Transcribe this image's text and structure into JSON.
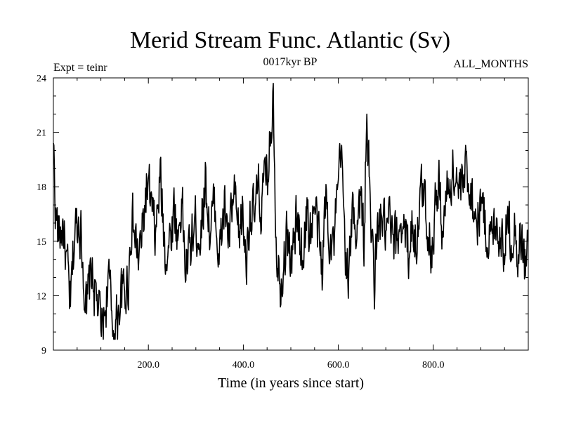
{
  "chart_data": {
    "type": "line",
    "title": "Merid Stream Func. Atlantic (Sv)",
    "subtitle_left": "Expt = teinr",
    "subtitle_center": "0017kyr BP",
    "subtitle_right": "ALL_MONTHS",
    "xlabel": "Time (in years since start)",
    "ylabel": "",
    "xlim": [
      0,
      1000
    ],
    "ylim": [
      9,
      24
    ],
    "xticks": [
      200,
      400,
      600,
      800
    ],
    "xtick_labels": [
      "200.0",
      "400.0",
      "600.0",
      "800.0"
    ],
    "yticks": [
      9,
      12,
      15,
      18,
      21,
      24
    ],
    "ytick_labels": [
      "9",
      "12",
      "15",
      "18",
      "21",
      "24"
    ],
    "grid": false,
    "legend": "none",
    "series": [
      {
        "name": "Merid Stream Func. Atlantic",
        "x_step": 1,
        "x_start": 0,
        "anchors": [
          [
            0,
            20.4
          ],
          [
            5,
            16.5
          ],
          [
            12,
            15.2
          ],
          [
            20,
            16.0
          ],
          [
            28,
            13.5
          ],
          [
            36,
            11.4
          ],
          [
            45,
            15.5
          ],
          [
            55,
            16.5
          ],
          [
            62,
            14.0
          ],
          [
            70,
            11.0
          ],
          [
            80,
            13.5
          ],
          [
            88,
            12.0
          ],
          [
            95,
            11.4
          ],
          [
            100,
            10.1
          ],
          [
            108,
            10.9
          ],
          [
            115,
            13.0
          ],
          [
            122,
            11.2
          ],
          [
            128,
            9.9
          ],
          [
            136,
            11.0
          ],
          [
            142,
            12.2
          ],
          [
            150,
            12.0
          ],
          [
            158,
            13.0
          ],
          [
            165,
            16.5
          ],
          [
            172,
            15.0
          ],
          [
            180,
            14.0
          ],
          [
            188,
            15.5
          ],
          [
            196,
            18.0
          ],
          [
            205,
            17.0
          ],
          [
            215,
            15.0
          ],
          [
            225,
            18.5
          ],
          [
            235,
            14.5
          ],
          [
            245,
            15.0
          ],
          [
            255,
            17.0
          ],
          [
            262,
            15.0
          ],
          [
            270,
            17.5
          ],
          [
            278,
            13.5
          ],
          [
            288,
            14.5
          ],
          [
            298,
            16.0
          ],
          [
            310,
            15.5
          ],
          [
            320,
            18.5
          ],
          [
            330,
            15.5
          ],
          [
            340,
            17.0
          ],
          [
            350,
            14.0
          ],
          [
            360,
            17.0
          ],
          [
            370,
            15.0
          ],
          [
            380,
            17.5
          ],
          [
            390,
            15.0
          ],
          [
            398,
            16.5
          ],
          [
            406,
            14.0
          ],
          [
            414,
            17.0
          ],
          [
            422,
            16.0
          ],
          [
            430,
            17.5
          ],
          [
            438,
            17.0
          ],
          [
            446,
            18.0
          ],
          [
            452,
            19.0
          ],
          [
            458,
            21.0
          ],
          [
            463,
            23.7
          ],
          [
            468,
            16.5
          ],
          [
            472,
            14.0
          ],
          [
            478,
            13.0
          ],
          [
            486,
            14.5
          ],
          [
            494,
            15.5
          ],
          [
            502,
            13.5
          ],
          [
            510,
            16.0
          ],
          [
            518,
            15.5
          ],
          [
            526,
            14.5
          ],
          [
            534,
            16.5
          ],
          [
            542,
            15.5
          ],
          [
            550,
            17.0
          ],
          [
            558,
            15.0
          ],
          [
            566,
            13.5
          ],
          [
            574,
            17.5
          ],
          [
            582,
            15.5
          ],
          [
            590,
            14.5
          ],
          [
            598,
            17.0
          ],
          [
            606,
            20.0
          ],
          [
            614,
            15.0
          ],
          [
            622,
            13.0
          ],
          [
            630,
            16.5
          ],
          [
            638,
            16.0
          ],
          [
            646,
            17.5
          ],
          [
            654,
            15.0
          ],
          [
            660,
            22.0
          ],
          [
            668,
            16.0
          ],
          [
            676,
            13.0
          ],
          [
            684,
            15.5
          ],
          [
            692,
            16.5
          ],
          [
            700,
            15.0
          ],
          [
            708,
            16.0
          ],
          [
            716,
            14.5
          ],
          [
            724,
            15.0
          ],
          [
            732,
            16.5
          ],
          [
            740,
            15.5
          ],
          [
            748,
            14.5
          ],
          [
            756,
            16.0
          ],
          [
            764,
            15.0
          ],
          [
            772,
            17.0
          ],
          [
            780,
            18.0
          ],
          [
            788,
            16.0
          ],
          [
            796,
            14.5
          ],
          [
            804,
            17.0
          ],
          [
            812,
            18.0
          ],
          [
            820,
            15.5
          ],
          [
            828,
            17.5
          ],
          [
            836,
            18.5
          ],
          [
            844,
            19.0
          ],
          [
            852,
            18.0
          ],
          [
            860,
            17.5
          ],
          [
            868,
            19.0
          ],
          [
            876,
            18.5
          ],
          [
            884,
            17.0
          ],
          [
            892,
            16.0
          ],
          [
            900,
            17.5
          ],
          [
            908,
            16.0
          ],
          [
            916,
            15.5
          ],
          [
            924,
            15.0
          ],
          [
            932,
            16.5
          ],
          [
            940,
            15.5
          ],
          [
            948,
            15.0
          ],
          [
            956,
            16.0
          ],
          [
            964,
            15.5
          ],
          [
            972,
            16.0
          ],
          [
            980,
            14.0
          ],
          [
            986,
            15.5
          ],
          [
            992,
            13.5
          ],
          [
            996,
            14.0
          ],
          [
            999,
            14.8
          ]
        ],
        "noise_amplitude": 2.6,
        "seed": 17
      }
    ]
  }
}
